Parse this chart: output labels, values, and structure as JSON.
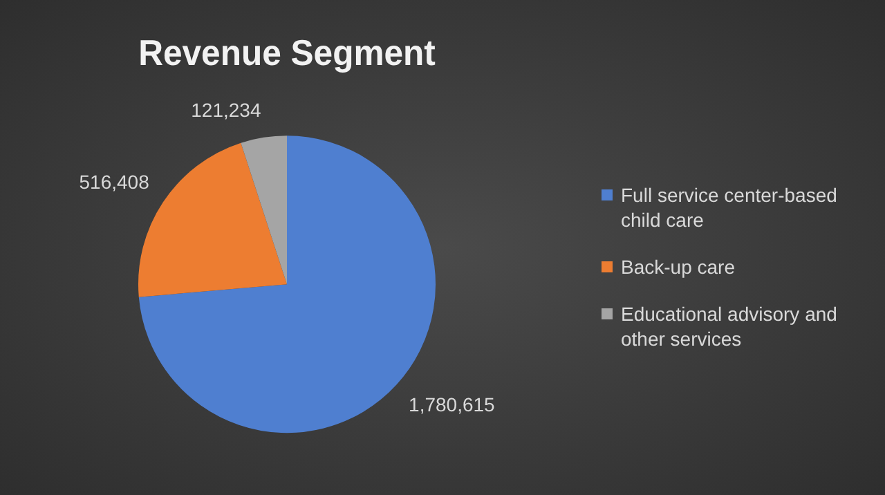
{
  "chart_data": {
    "type": "pie",
    "title": "Revenue Segment",
    "categories": [
      "Full service center-based child care",
      "Back-up care",
      "Educational advisory and other services"
    ],
    "values": [
      1780615,
      516408,
      121234
    ],
    "colors": [
      "#4f7fd0",
      "#ed7d31",
      "#a5a5a5"
    ],
    "value_labels": [
      "1,780,615",
      "516,408",
      "121,234"
    ],
    "legend": "right"
  }
}
